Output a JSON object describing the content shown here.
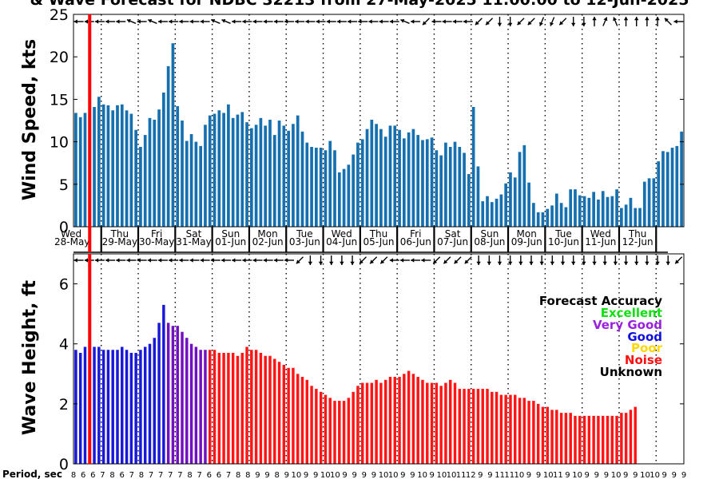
{
  "chart_data": {
    "type": "bar",
    "title": "& Wave Forecast for NDBC 32213 from 27-May-2025 11:00:00 to 12-Jun-2025",
    "x_days": [
      {
        "day": "Wed",
        "date": "28-May"
      },
      {
        "day": "Thu",
        "date": "29-May"
      },
      {
        "day": "Fri",
        "date": "30-May"
      },
      {
        "day": "Sat",
        "date": "31-May"
      },
      {
        "day": "Sun",
        "date": "01-Jun"
      },
      {
        "day": "Mon",
        "date": "02-Jun"
      },
      {
        "day": "Tue",
        "date": "03-Jun"
      },
      {
        "day": "Wed",
        "date": "04-Jun"
      },
      {
        "day": "Thu",
        "date": "05-Jun"
      },
      {
        "day": "Fri",
        "date": "06-Jun"
      },
      {
        "day": "Sat",
        "date": "07-Jun"
      },
      {
        "day": "Sun",
        "date": "08-Jun"
      },
      {
        "day": "Mon",
        "date": "09-Jun"
      },
      {
        "day": "Tue",
        "date": "10-Jun"
      },
      {
        "day": "Wed",
        "date": "11-Jun"
      },
      {
        "day": "Thu",
        "date": "12-Jun"
      }
    ],
    "wind": {
      "ylabel": "Wind Speed, kts",
      "ylim": [
        0,
        25
      ],
      "yticks": [
        "0",
        "5",
        "10",
        "15",
        "20",
        "25"
      ],
      "color": "#1670b0",
      "values": [
        13.4,
        12.9,
        13.4,
        13.2,
        14.1,
        15.3,
        14.4,
        14.3,
        13.7,
        14.3,
        14.4,
        13.7,
        13.3,
        11.4,
        9.4,
        10.8,
        12.8,
        12.6,
        13.8,
        15.8,
        18.9,
        21.6,
        14.2,
        12.5,
        10.1,
        10.9,
        10.0,
        9.5,
        12.0,
        13.1,
        13.3,
        13.7,
        13.4,
        14.4,
        12.8,
        13.2,
        13.5,
        12.3,
        11.6,
        12.0,
        12.8,
        11.9,
        12.6,
        10.8,
        12.5,
        11.9,
        11.3,
        12.1,
        13.1,
        11.2,
        9.9,
        9.4,
        9.3,
        9.3,
        9.0,
        10.1,
        9.0,
        6.4,
        6.8,
        7.3,
        8.5,
        9.9,
        10.3,
        11.5,
        12.6,
        12.1,
        11.5,
        10.6,
        11.9,
        11.9,
        11.4,
        10.4,
        11.1,
        11.5,
        10.8,
        10.2,
        10.3,
        10.5,
        9.0,
        8.4,
        9.9,
        9.4,
        10.0,
        9.4,
        8.7,
        6.2,
        14.1,
        7.1,
        3.0,
        3.6,
        2.9,
        3.3,
        3.8,
        5.1,
        6.4,
        5.8,
        8.8,
        9.6,
        5.2,
        2.8,
        1.7,
        1.7,
        2.1,
        2.5,
        3.9,
        2.8,
        2.3,
        4.4,
        4.4,
        3.7,
        3.6,
        3.4,
        4.1,
        3.2,
        4.2,
        3.5,
        3.6,
        4.4,
        2.2,
        2.6,
        3.4,
        2.2,
        2.2,
        5.3,
        5.7,
        5.7,
        7.7,
        8.9,
        8.8,
        9.3,
        9.5,
        11.2
      ]
    },
    "wave": {
      "ylabel": "Wave Height, ft",
      "ylim": [
        0,
        7
      ],
      "yticks": [
        "0",
        "2",
        "4",
        "6"
      ],
      "values": [
        3.8,
        3.7,
        3.9,
        3.9,
        3.9,
        3.9,
        3.8,
        3.8,
        3.8,
        3.8,
        3.9,
        3.8,
        3.7,
        3.7,
        3.8,
        3.9,
        4.0,
        4.2,
        4.7,
        5.3,
        4.7,
        4.6,
        4.6,
        4.4,
        4.2,
        4.0,
        3.9,
        3.8,
        3.8,
        3.8,
        3.8,
        3.7,
        3.7,
        3.7,
        3.7,
        3.6,
        3.7,
        3.9,
        3.8,
        3.8,
        3.7,
        3.6,
        3.6,
        3.5,
        3.4,
        3.3,
        3.2,
        3.2,
        3.0,
        2.9,
        2.8,
        2.6,
        2.5,
        2.4,
        2.3,
        2.2,
        2.1,
        2.1,
        2.1,
        2.2,
        2.4,
        2.6,
        2.7,
        2.7,
        2.7,
        2.8,
        2.7,
        2.8,
        2.9,
        2.9,
        2.9,
        3.0,
        3.1,
        3.0,
        2.9,
        2.8,
        2.7,
        2.7,
        2.7,
        2.6,
        2.7,
        2.8,
        2.7,
        2.5,
        2.5,
        2.5,
        2.5,
        2.5,
        2.5,
        2.5,
        2.4,
        2.4,
        2.3,
        2.3,
        2.3,
        2.3,
        2.2,
        2.2,
        2.1,
        2.1,
        2.0,
        1.9,
        1.9,
        1.8,
        1.8,
        1.7,
        1.7,
        1.7,
        1.6,
        1.6,
        1.6,
        1.6,
        1.6,
        1.6,
        1.6,
        1.6,
        1.6,
        1.6,
        1.7,
        1.7,
        1.8,
        1.9
      ]
    },
    "quality_colors": {
      "good": "#1818d8",
      "very_good": "#7010c0",
      "noise": "#ff1515"
    },
    "quality_split": {
      "good_until": 20,
      "very_good_until": 29
    },
    "current_time_index": 3,
    "wind_arrows": [
      "W",
      "W",
      "W",
      "W",
      "W",
      "WNW",
      "W",
      "WNW",
      "W",
      "W",
      "W",
      "W",
      "W",
      "WNW",
      "WNW",
      "W",
      "W",
      "W",
      "W",
      "W",
      "W",
      "W",
      "W",
      "W",
      "W",
      "W",
      "W",
      "W",
      "W",
      "W",
      "W",
      "WNW",
      "W",
      "SW",
      "W",
      "W",
      "W",
      "W",
      "SW",
      "SW",
      "S",
      "S",
      "SW",
      "SW",
      "SSW",
      "SSW",
      "SW",
      "S",
      "S",
      "N",
      "NNE",
      "NNW",
      "N",
      "N",
      "N",
      "N",
      "NW",
      "W"
    ],
    "wave_arrows": [
      "W",
      "W",
      "W",
      "W",
      "W",
      "W",
      "W",
      "W",
      "W",
      "W",
      "W",
      "W",
      "W",
      "W",
      "W",
      "W",
      "W",
      "W",
      "W",
      "W",
      "W",
      "SW",
      "S",
      "S",
      "S",
      "S",
      "S",
      "SW",
      "SW",
      "SW",
      "W",
      "W",
      "W",
      "W",
      "SW",
      "SW",
      "SW",
      "SW",
      "S",
      "S",
      "S",
      "S",
      "S",
      "S",
      "S",
      "S",
      "S",
      "S",
      "S",
      "S",
      "S",
      "S",
      "S",
      "S",
      "S",
      "S",
      "S",
      "SW"
    ],
    "legend": {
      "title": "Forecast Accuracy",
      "items": [
        {
          "label": "Excellent",
          "color": "#10e010"
        },
        {
          "label": "Very Good",
          "color": "#9922dd"
        },
        {
          "label": "Good",
          "color": "#1010dd"
        },
        {
          "label": "Poor",
          "color": "#ffd700"
        },
        {
          "label": "Noise",
          "color": "#ff1010"
        },
        {
          "label": "Unknown",
          "color": "#000000"
        }
      ]
    },
    "period": {
      "label": "Period, sec",
      "values": [
        "8",
        "6",
        "6",
        "7",
        "8",
        "6",
        "7",
        "8",
        "7",
        "7",
        "7",
        "7",
        "8",
        "7",
        "6",
        "6",
        "7",
        "8",
        "8",
        "9",
        "9",
        "8",
        "9",
        "10",
        "9",
        "9",
        "10",
        "10",
        "9",
        "9",
        "9",
        "9",
        "10",
        "10",
        "9",
        "9",
        "10",
        "9",
        "10",
        "10",
        "11",
        "12",
        "9",
        "9",
        "11",
        "11",
        "10",
        "9",
        "9",
        "10",
        "11",
        "9",
        "10",
        "9",
        "9",
        "9",
        "10",
        "9",
        "9",
        "10",
        "10",
        "9",
        "9",
        "9"
      ]
    }
  }
}
